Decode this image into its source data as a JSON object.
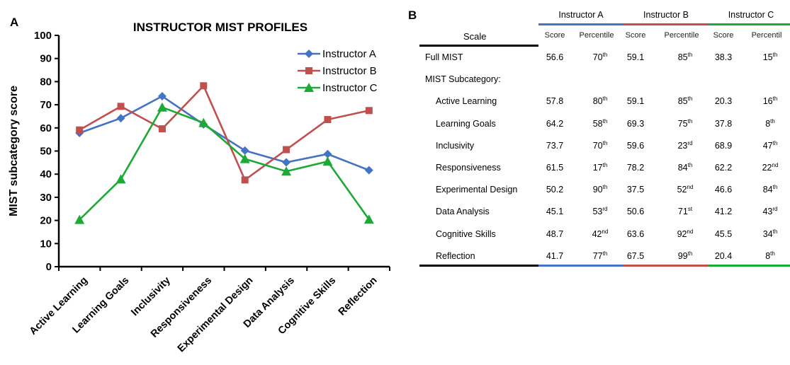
{
  "panel_a_label": "A",
  "panel_b_label": "B",
  "chart_data": {
    "type": "line",
    "title": "INSTRUCTOR MIST PROFILES",
    "xlabel": "",
    "ylabel": "MIST subcategory  score",
    "ylim": [
      0,
      100
    ],
    "yticks": [
      "0",
      "10",
      "20",
      "30",
      "40",
      "50",
      "60",
      "70",
      "80",
      "90",
      "100"
    ],
    "categories": [
      "Active Learning",
      "Learning Goals",
      "Inclusivity",
      "Responsiveness",
      "Experimental Design",
      "Data Analysis",
      "Cognitive Skills",
      "Reflection"
    ],
    "legend_position": "top-right",
    "grid": false,
    "series": [
      {
        "name": "Instructor A",
        "color": "#4472C4",
        "marker": "diamond",
        "values": [
          57.8,
          64.2,
          73.7,
          61.5,
          50.2,
          45.1,
          48.7,
          41.7
        ]
      },
      {
        "name": "Instructor B",
        "color": "#C0504D",
        "marker": "square",
        "values": [
          59.1,
          69.3,
          59.6,
          78.2,
          37.5,
          50.6,
          63.6,
          67.5
        ]
      },
      {
        "name": "Instructor C",
        "color": "#1BAA35",
        "marker": "triangle",
        "values": [
          20.3,
          37.8,
          68.9,
          62.2,
          46.6,
          41.2,
          45.5,
          20.4
        ]
      }
    ]
  },
  "table": {
    "scale_header": "Scale",
    "instructors": [
      {
        "name": "Instructor A",
        "color": "#4472C4"
      },
      {
        "name": "Instructor B",
        "color": "#C0504D"
      },
      {
        "name": "Instructor C",
        "color": "#1BAA35"
      }
    ],
    "score_label": "Score",
    "percentile_label": "Percentile",
    "percentile_label_cut": "Percentil",
    "rows": [
      {
        "label": "Full MIST",
        "indent": false,
        "cells": [
          [
            "56.6",
            "70",
            "th"
          ],
          [
            "59.1",
            "85",
            "th"
          ],
          [
            "38.3",
            "15",
            "th"
          ]
        ]
      },
      {
        "label": "MIST Subcategory:",
        "indent": false,
        "cells": null
      },
      {
        "label": "Active Learning",
        "indent": true,
        "cells": [
          [
            "57.8",
            "80",
            "th"
          ],
          [
            "59.1",
            "85",
            "th"
          ],
          [
            "20.3",
            "16",
            "th"
          ]
        ]
      },
      {
        "label": "Learning Goals",
        "indent": true,
        "cells": [
          [
            "64.2",
            "58",
            "th"
          ],
          [
            "69.3",
            "75",
            "th"
          ],
          [
            "37.8",
            "8",
            "th"
          ]
        ]
      },
      {
        "label": "Inclusivity",
        "indent": true,
        "cells": [
          [
            "73.7",
            "70",
            "th"
          ],
          [
            "59.6",
            "23",
            "rd"
          ],
          [
            "68.9",
            "47",
            "th"
          ]
        ]
      },
      {
        "label": "Responsiveness",
        "indent": true,
        "cells": [
          [
            "61.5",
            "17",
            "th"
          ],
          [
            "78.2",
            "84",
            "th"
          ],
          [
            "62.2",
            "22",
            "nd"
          ]
        ]
      },
      {
        "label": "Experimental Design",
        "indent": true,
        "cells": [
          [
            "50.2",
            "90",
            "th"
          ],
          [
            "37.5",
            "52",
            "nd"
          ],
          [
            "46.6",
            "84",
            "th"
          ]
        ]
      },
      {
        "label": "Data Analysis",
        "indent": true,
        "cells": [
          [
            "45.1",
            "53",
            "rd"
          ],
          [
            "50.6",
            "71",
            "st"
          ],
          [
            "41.2",
            "43",
            "rd"
          ]
        ]
      },
      {
        "label": "Cognitive Skills",
        "indent": true,
        "cells": [
          [
            "48.7",
            "42",
            "nd"
          ],
          [
            "63.6",
            "92",
            "nd"
          ],
          [
            "45.5",
            "34",
            "th"
          ]
        ]
      },
      {
        "label": "Reflection",
        "indent": true,
        "cells": [
          [
            "41.7",
            "77",
            "th"
          ],
          [
            "67.5",
            "99",
            "th"
          ],
          [
            "20.4",
            "8",
            "th"
          ]
        ]
      }
    ]
  }
}
